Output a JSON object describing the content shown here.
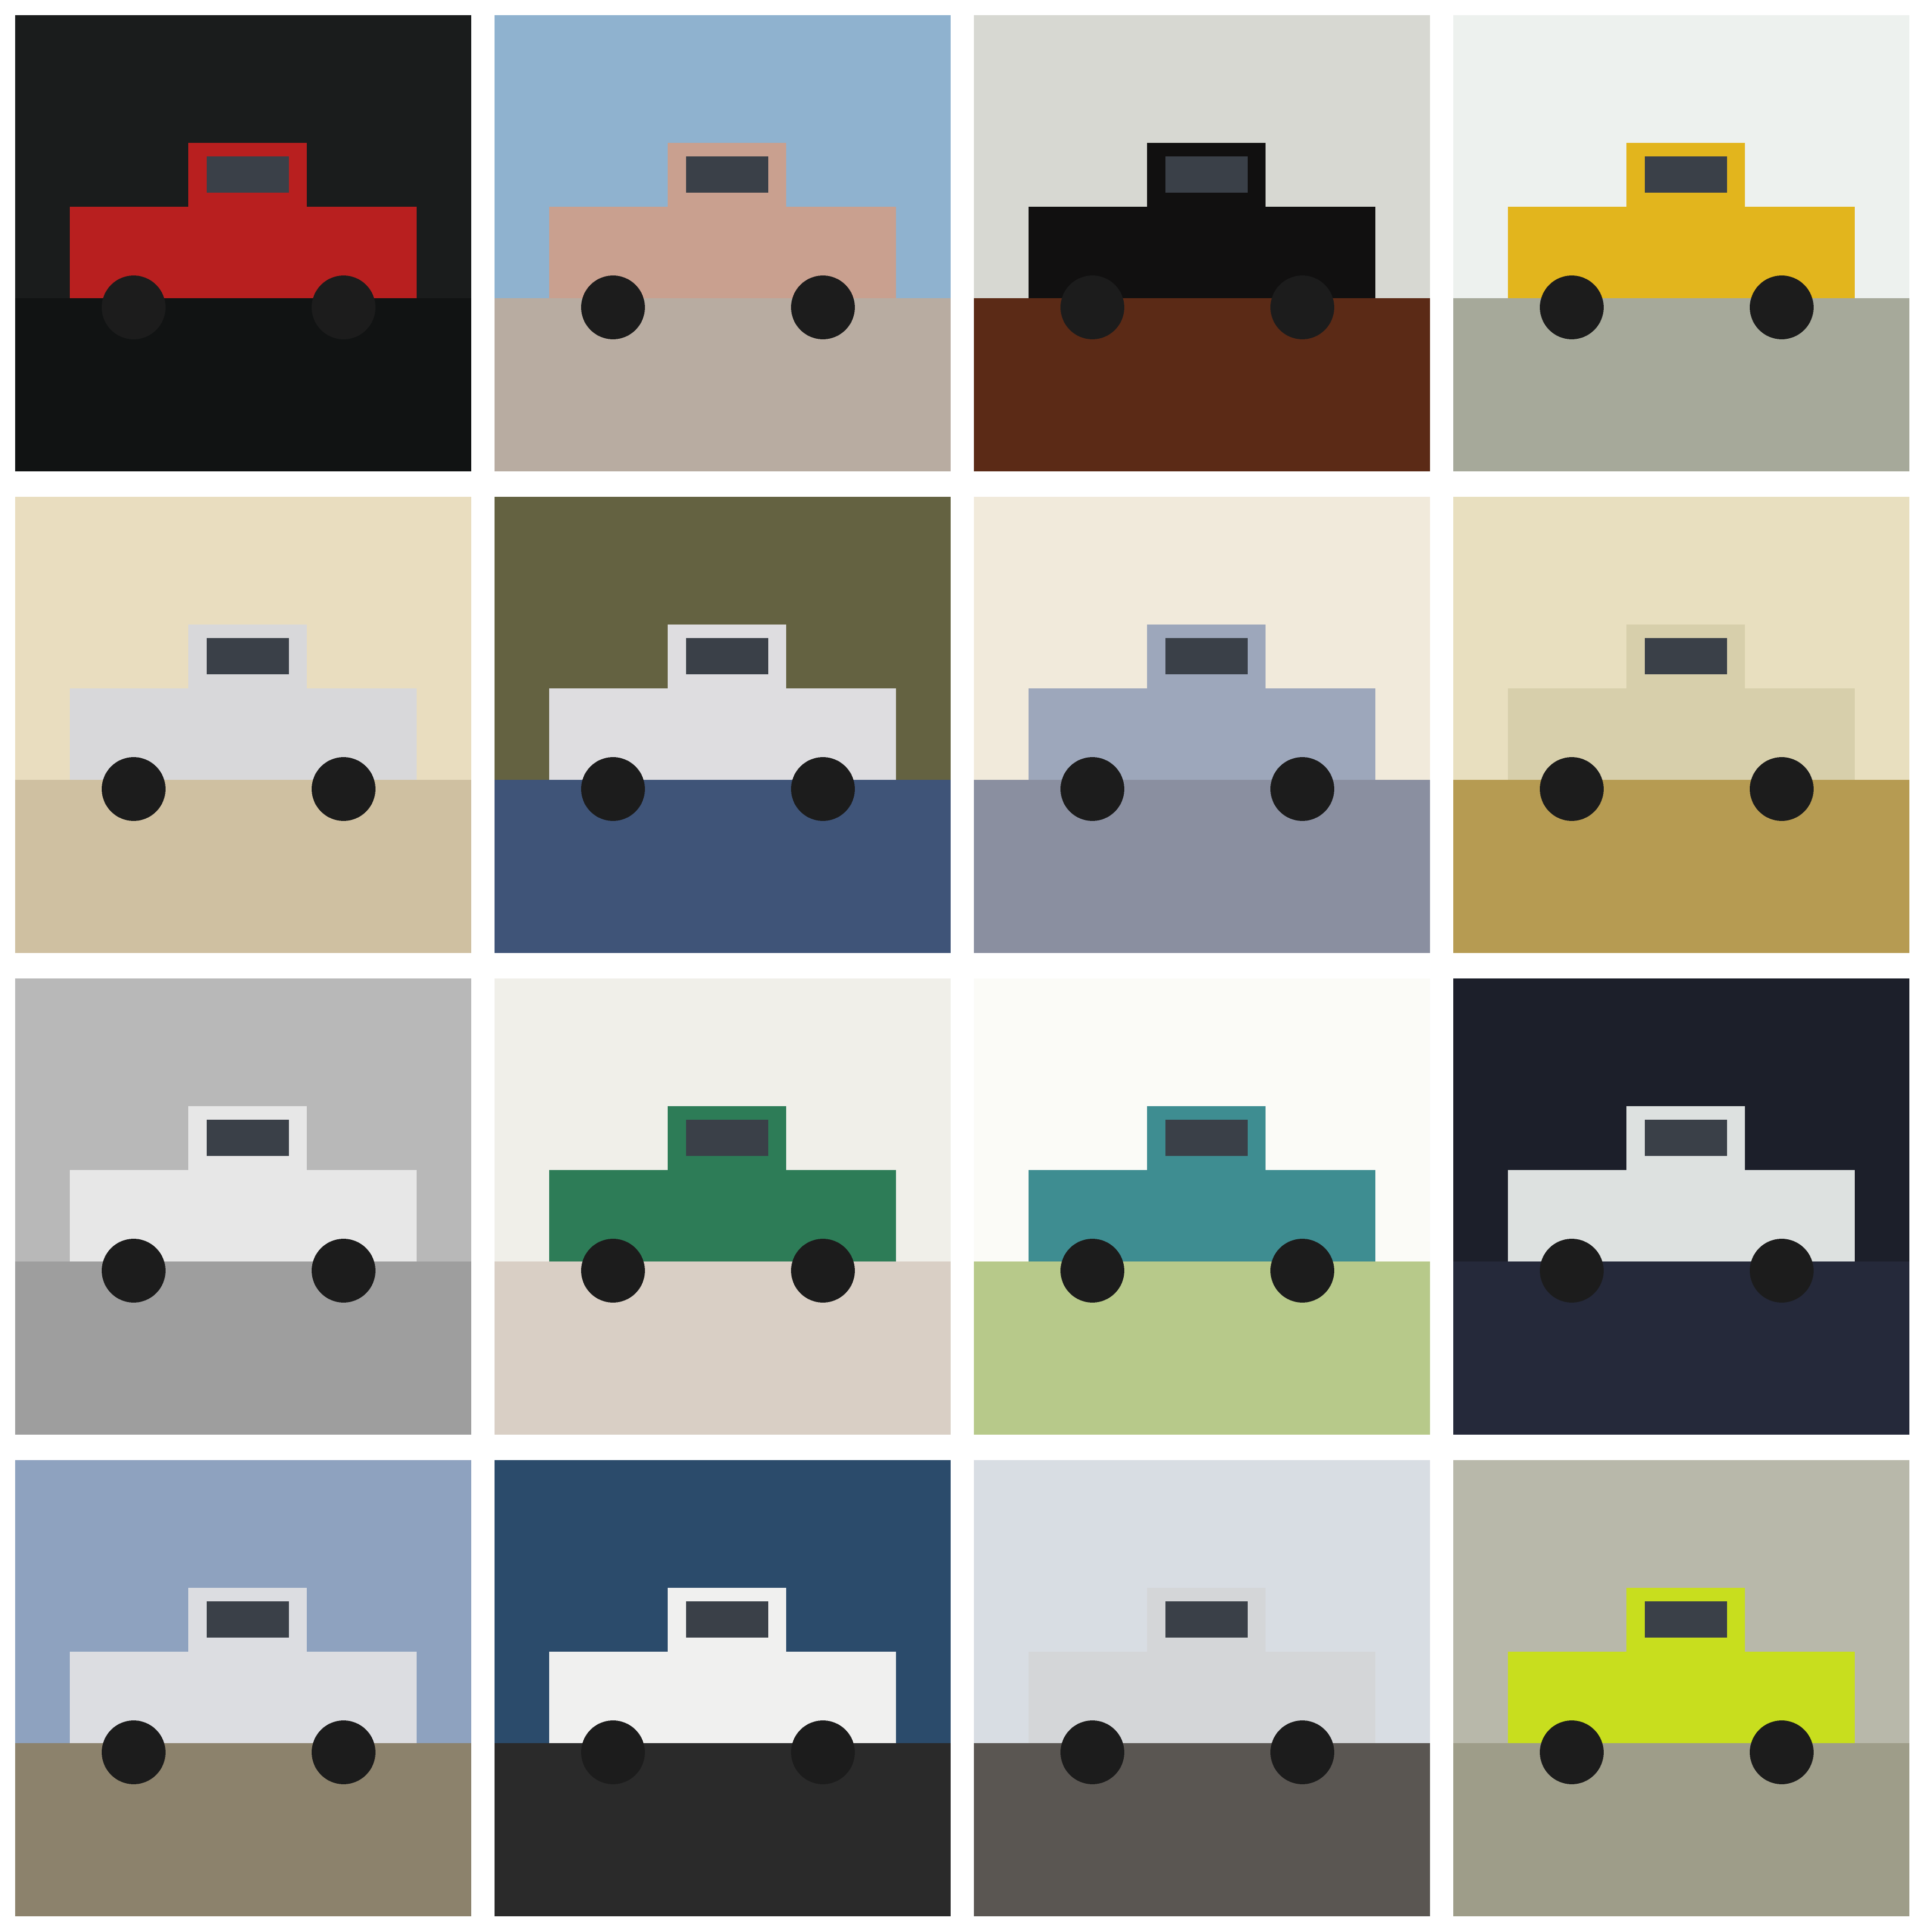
{
  "grid": {
    "rows": 4,
    "columns": 4,
    "background": "#ffffff"
  },
  "tiles": [
    {
      "subject": "pickup-truck",
      "body_color": "#b81f1f",
      "background_color": "#1a1c1c",
      "ground_color": "#111313"
    },
    {
      "subject": "pickup-truck",
      "body_color": "#c9a08f",
      "background_color": "#8fb2cf",
      "ground_color": "#b8aca1"
    },
    {
      "subject": "pickup-truck",
      "body_color": "#111010",
      "background_color": "#d7d8d2",
      "ground_color": "#5b2a16"
    },
    {
      "subject": "pickup-truck",
      "body_color": "#e2b51d",
      "background_color": "#edf1ee",
      "ground_color": "#a6a99a"
    },
    {
      "subject": "pickup-truck",
      "body_color": "#d8d8da",
      "background_color": "#e9ddbf",
      "ground_color": "#cfc0a1"
    },
    {
      "subject": "pickup-truck",
      "body_color": "#dedde0",
      "background_color": "#646241",
      "ground_color": "#3f5478"
    },
    {
      "subject": "pickup-truck",
      "body_color": "#9da7bb",
      "background_color": "#f1eadb",
      "ground_color": "#8a8fa0"
    },
    {
      "subject": "pickup-truck",
      "body_color": "#d7cfab",
      "background_color": "#e8dfbf",
      "ground_color": "#b69b52"
    },
    {
      "subject": "pickup-truck",
      "body_color": "#e7e7e7",
      "background_color": "#b8b8b8",
      "ground_color": "#9e9e9e"
    },
    {
      "subject": "pickup-truck",
      "body_color": "#2d7c57",
      "background_color": "#f0efe9",
      "ground_color": "#d9cfc5"
    },
    {
      "subject": "pickup-truck",
      "body_color": "#3e8d91",
      "background_color": "#fbfbf7",
      "ground_color": "#b7c98a"
    },
    {
      "subject": "pickup-truck",
      "body_color": "#dde1e0",
      "background_color": "#1c1f2a",
      "ground_color": "#25293a"
    },
    {
      "subject": "pickup-truck",
      "body_color": "#dcdde1",
      "background_color": "#8ea2bf",
      "ground_color": "#8c826c"
    },
    {
      "subject": "pickup-truck",
      "body_color": "#f0f0ef",
      "background_color": "#2b4b6b",
      "ground_color": "#2a2a2a"
    },
    {
      "subject": "pickup-truck",
      "body_color": "#d4d6d8",
      "background_color": "#d8dde3",
      "ground_color": "#5a5652"
    },
    {
      "subject": "pickup-truck",
      "body_color": "#c8de1e",
      "background_color": "#b8b8aa",
      "ground_color": "#9e9d89"
    }
  ]
}
